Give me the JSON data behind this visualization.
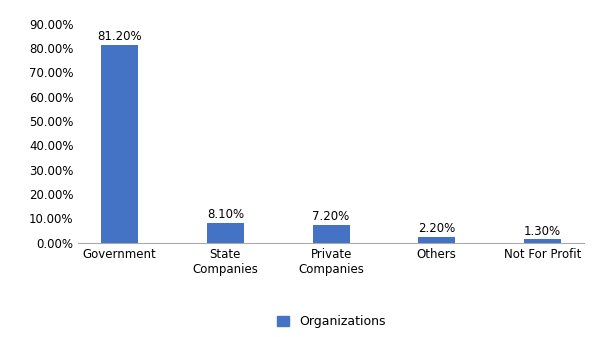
{
  "categories": [
    "Government",
    "State\nCompanies",
    "Private\nCompanies",
    "Others",
    "Not For Profit"
  ],
  "values": [
    0.812,
    0.081,
    0.072,
    0.022,
    0.013
  ],
  "labels": [
    "81.20%",
    "8.10%",
    "7.20%",
    "2.20%",
    "1.30%"
  ],
  "bar_color": "#4472C4",
  "legend_label": "Organizations",
  "ylim": [
    0,
    0.9
  ],
  "yticks": [
    0.0,
    0.1,
    0.2,
    0.3,
    0.4,
    0.5,
    0.6,
    0.7,
    0.8,
    0.9
  ],
  "ytick_labels": [
    "0.00%",
    "10.00%",
    "20.00%",
    "30.00%",
    "40.00%",
    "50.00%",
    "60.00%",
    "70.00%",
    "80.00%",
    "90.00%"
  ],
  "background_color": "#ffffff",
  "bar_width": 0.35,
  "label_fontsize": 8.5,
  "tick_fontsize": 8.5,
  "legend_fontsize": 9
}
